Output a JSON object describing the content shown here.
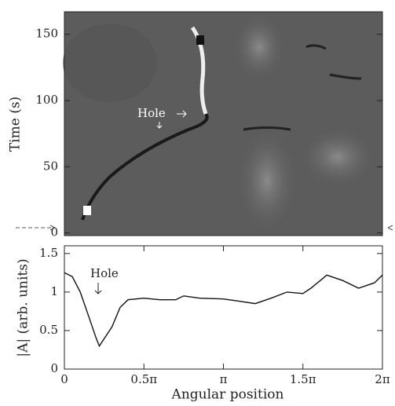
{
  "chart_data": [
    {
      "type": "heatmap",
      "ylabel": "Time (s)",
      "ylim": [
        -2,
        167
      ],
      "yticks": [
        0,
        50,
        100,
        150
      ],
      "annotation": "Hole"
    },
    {
      "type": "line",
      "xlabel": "Angular position",
      "ylabel": "|A| (arb. units)",
      "color": "#111111",
      "xlim": [
        0,
        6.283
      ],
      "ylim": [
        0,
        1.6
      ],
      "xticks": [
        0,
        {
          "value": 1.571,
          "label": "0.5π"
        },
        {
          "value": 3.142,
          "label": "π"
        },
        {
          "value": 4.712,
          "label": "1.5π"
        },
        {
          "value": 6.283,
          "label": "2π"
        }
      ],
      "yticks": [
        0,
        0.5,
        1,
        1.5
      ],
      "x": [
        0,
        0.157,
        0.314,
        0.471,
        0.628,
        0.691,
        0.942,
        1.1,
        1.257,
        1.571,
        1.885,
        2.199,
        2.356,
        2.67,
        3.142,
        3.456,
        3.77,
        4.084,
        4.398,
        4.712,
        4.869,
        5.184,
        5.498,
        5.812,
        6.126,
        6.283
      ],
      "values": [
        1.25,
        1.2,
        1.0,
        0.7,
        0.4,
        0.3,
        0.55,
        0.8,
        0.9,
        0.92,
        0.9,
        0.9,
        0.95,
        0.92,
        0.91,
        0.88,
        0.85,
        0.92,
        1.0,
        0.98,
        1.05,
        1.22,
        1.15,
        1.05,
        1.12,
        1.22
      ],
      "annotation": "Hole"
    }
  ]
}
